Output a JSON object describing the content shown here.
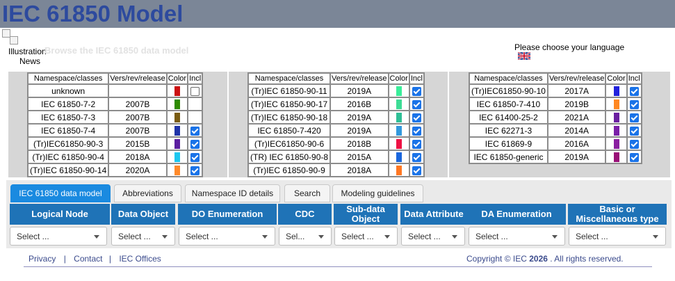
{
  "header": {
    "title": "IEC 61850 Model"
  },
  "top": {
    "image_alt": "Illustration",
    "news_link": "News",
    "browse_text": "Browse the IEC 61850 data model",
    "language_prompt": "Please choose your language",
    "flag_icon": "uk-flag-icon"
  },
  "table_headers": {
    "ns": "Namespace/classes",
    "vers": "Vers/rev/release",
    "color": "Color",
    "incl": "Incl"
  },
  "tables": [
    {
      "rows": [
        {
          "ns": "unknown",
          "vers": "",
          "color": "#cc1111",
          "incl": false
        },
        {
          "ns": "IEC 61850-7-2",
          "vers": "2007B",
          "color": "#2e8b00",
          "incl": null
        },
        {
          "ns": "IEC 61850-7-3",
          "vers": "2007B",
          "color": "#7a5c12",
          "incl": null
        },
        {
          "ns": "IEC 61850-7-4",
          "vers": "2007B",
          "color": "#1f33a8",
          "incl": true
        },
        {
          "ns": "(Tr)IEC61850-90-3",
          "vers": "2015B",
          "color": "#5b1fa0",
          "incl": true
        },
        {
          "ns": "(Tr)IEC 61850-90-4",
          "vers": "2018A",
          "color": "#1dc7ef",
          "incl": true
        },
        {
          "ns": "(Tr)IEC 61850-90-14",
          "vers": "2020A",
          "color": "#ff8a2a",
          "incl": true
        }
      ]
    },
    {
      "rows": [
        {
          "ns": "(Tr)IEC 61850-90-11",
          "vers": "2019A",
          "color": "#39ee9a",
          "incl": true
        },
        {
          "ns": "(Tr)IEC 61850-90-17",
          "vers": "2016B",
          "color": "#3ddc95",
          "incl": true
        },
        {
          "ns": "(Tr)IEC 61850-90-18",
          "vers": "2019A",
          "color": "#2fbf96",
          "incl": true
        },
        {
          "ns": "IEC 61850-7-420",
          "vers": "2019A",
          "color": "#3399dd",
          "incl": true
        },
        {
          "ns": "(Tr)IEC61850-90-6",
          "vers": "2018B",
          "color": "#ee1144",
          "incl": true
        },
        {
          "ns": "(TR) IEC 61850-90-8",
          "vers": "2015A",
          "color": "#1a66dd",
          "incl": true
        },
        {
          "ns": "(Tr)IEC 61850-90-9",
          "vers": "2018A",
          "color": "#ff7722",
          "incl": true
        }
      ]
    },
    {
      "rows": [
        {
          "ns": "(Tr)IEC61850-90-10",
          "vers": "2017A",
          "color": "#2222dd",
          "incl": true
        },
        {
          "ns": "IEC 61850-7-410",
          "vers": "2019B",
          "color": "#ff8822",
          "incl": true
        },
        {
          "ns": "IEC 61400-25-2",
          "vers": "2021A",
          "color": "#6a1fa0",
          "incl": true
        },
        {
          "ns": "IEC 62271-3",
          "vers": "2014A",
          "color": "#7a1fa8",
          "incl": true
        },
        {
          "ns": "IEC 61869-9",
          "vers": "2016A",
          "color": "#8a1fa0",
          "incl": true
        },
        {
          "ns": "IEC 61850-generic",
          "vers": "2019A",
          "color": "#991177",
          "incl": true
        }
      ]
    }
  ],
  "tabs": [
    {
      "label": "IEC 61850 data model",
      "active": true
    },
    {
      "label": "Abbreviations",
      "active": false
    },
    {
      "label": "Namespace ID details",
      "active": false
    },
    {
      "label": "Search",
      "active": false
    },
    {
      "label": "Modeling guidelines",
      "active": false
    }
  ],
  "columns": [
    {
      "label": "Logical Node",
      "select": "Select ..."
    },
    {
      "label": "Data Object",
      "select": "Select ..."
    },
    {
      "label": "DO Enumeration",
      "select": "Select ..."
    },
    {
      "label": "CDC",
      "select": "Sel..."
    },
    {
      "label": "Sub-data Object",
      "select": "Select ..."
    },
    {
      "label": "Data Attribute",
      "select": "Select ..."
    },
    {
      "label": "DA Enumeration",
      "select": "Select ..."
    },
    {
      "label": "Basic or Miscellaneous type",
      "select": "Select ..."
    }
  ],
  "footer": {
    "links": [
      "Privacy",
      "Contact",
      "IEC Offices"
    ],
    "separator": "|",
    "copyright_prefix": "Copyright © IEC",
    "copyright_year": "2026",
    "copyright_suffix": ". All rights reserved."
  }
}
